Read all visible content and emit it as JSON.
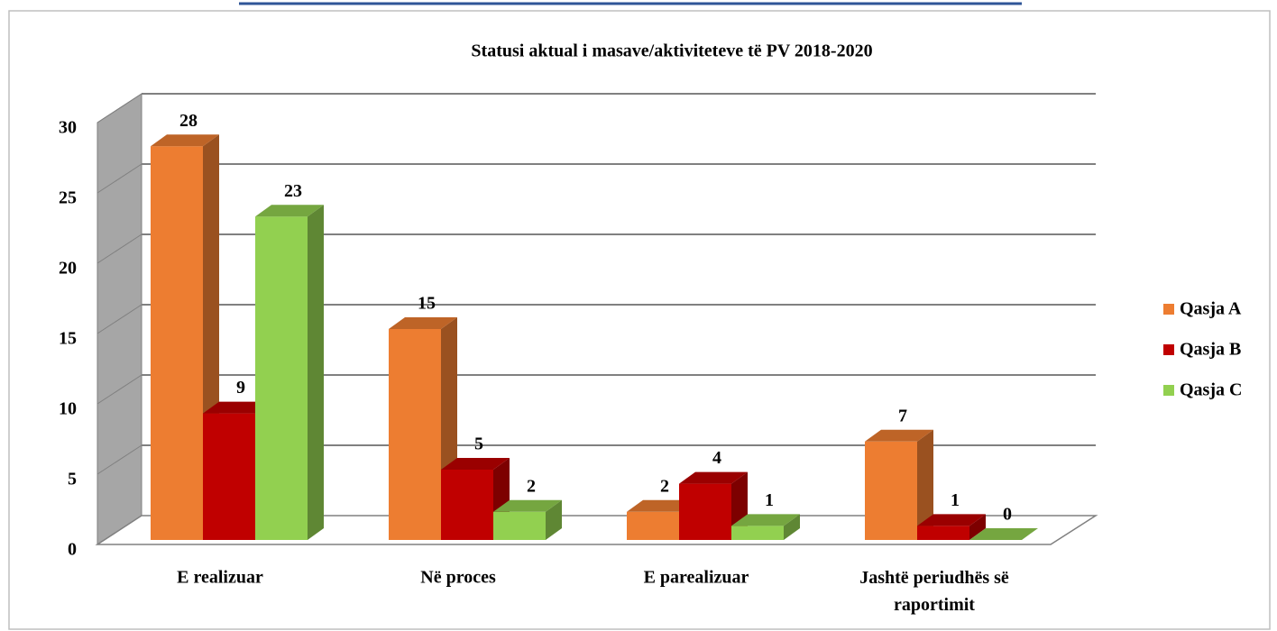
{
  "chart_data": {
    "type": "bar3d",
    "title": "Statusi aktual i masave/aktiviteteve të PV 2018-2020",
    "categories": [
      "E realizuar",
      "Në proces",
      "E parealizuar",
      "Jashtë periudhës së raportimit"
    ],
    "series": [
      {
        "name": "Qasja A",
        "color": "#ED7D31",
        "values": [
          28,
          15,
          2,
          7
        ]
      },
      {
        "name": "Qasja B",
        "color": "#C00000",
        "values": [
          9,
          5,
          4,
          1
        ]
      },
      {
        "name": "Qasja C",
        "color": "#92D050",
        "values": [
          23,
          2,
          1,
          0
        ]
      }
    ],
    "ylim": [
      0,
      30
    ],
    "yticks": [
      0,
      5,
      10,
      15,
      20,
      25,
      30
    ],
    "grid": true,
    "legend": "right"
  }
}
